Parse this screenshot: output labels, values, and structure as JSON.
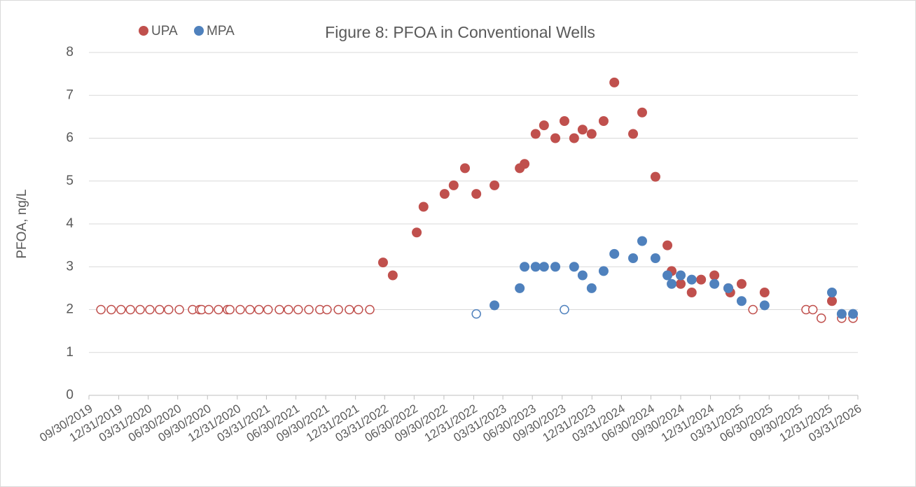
{
  "chart_data": {
    "type": "scatter",
    "title": "Figure 8: PFOA in Conventional Wells",
    "ylabel": "PFOA, ng/L",
    "ylim": [
      0,
      8
    ],
    "yticks": [
      0,
      1,
      2,
      3,
      4,
      5,
      6,
      7,
      8
    ],
    "xlim": [
      "2019-09-30",
      "2026-03-31"
    ],
    "xticks": [
      {
        "value": "2019-09-30",
        "label": "09/30/2019"
      },
      {
        "value": "2019-12-31",
        "label": "12/31/2019"
      },
      {
        "value": "2020-03-31",
        "label": "03/31/2020"
      },
      {
        "value": "2020-06-30",
        "label": "06/30/2020"
      },
      {
        "value": "2020-09-30",
        "label": "09/30/2020"
      },
      {
        "value": "2020-12-31",
        "label": "12/31/2020"
      },
      {
        "value": "2021-03-31",
        "label": "03/31/2021"
      },
      {
        "value": "2021-06-30",
        "label": "06/30/2021"
      },
      {
        "value": "2021-09-30",
        "label": "09/30/2021"
      },
      {
        "value": "2021-12-31",
        "label": "12/31/2021"
      },
      {
        "value": "2022-03-31",
        "label": "03/31/2022"
      },
      {
        "value": "2022-06-30",
        "label": "06/30/2022"
      },
      {
        "value": "2022-09-30",
        "label": "09/30/2022"
      },
      {
        "value": "2022-12-31",
        "label": "12/31/2022"
      },
      {
        "value": "2023-03-31",
        "label": "03/31/2023"
      },
      {
        "value": "2023-06-30",
        "label": "06/30/2023"
      },
      {
        "value": "2023-09-30",
        "label": "09/30/2023"
      },
      {
        "value": "2023-12-31",
        "label": "12/31/2023"
      },
      {
        "value": "2024-03-31",
        "label": "03/31/2024"
      },
      {
        "value": "2024-06-30",
        "label": "06/30/2024"
      },
      {
        "value": "2024-09-30",
        "label": "09/30/2024"
      },
      {
        "value": "2024-12-31",
        "label": "12/31/2024"
      },
      {
        "value": "2025-03-31",
        "label": "03/31/2025"
      },
      {
        "value": "2025-06-30",
        "label": "06/30/2025"
      },
      {
        "value": "2025-09-30",
        "label": "09/30/2025"
      },
      {
        "value": "2025-12-31",
        "label": "12/31/2025"
      },
      {
        "value": "2026-03-31",
        "label": "03/31/2026"
      }
    ],
    "grid": true,
    "legend": "top-left",
    "series": [
      {
        "name": "UPA",
        "color": "#c0504d",
        "x": [
          "2019-11-06",
          "2019-12-08",
          "2020-01-07",
          "2020-02-05",
          "2020-03-06",
          "2020-04-05",
          "2020-05-05",
          "2020-06-02",
          "2020-07-05",
          "2020-08-15",
          "2020-09-06",
          "2020-09-12",
          "2020-10-04",
          "2020-11-03",
          "2020-12-01",
          "2020-12-08",
          "2021-01-09",
          "2021-02-08",
          "2021-03-08",
          "2021-04-05",
          "2021-05-10",
          "2021-06-07",
          "2021-07-07",
          "2021-08-09",
          "2021-09-12",
          "2021-10-04",
          "2021-11-08",
          "2021-12-12",
          "2022-01-09",
          "2022-02-13",
          "2022-03-26",
          "2022-04-25",
          "2022-07-08",
          "2022-07-29",
          "2022-10-02",
          "2022-10-30",
          "2022-12-04",
          "2023-01-08",
          "2023-03-05",
          "2023-05-22",
          "2023-06-06",
          "2023-07-10",
          "2023-08-05",
          "2023-09-09",
          "2023-10-07",
          "2023-11-06",
          "2023-12-02",
          "2023-12-30",
          "2024-02-05",
          "2024-03-09",
          "2024-05-06",
          "2024-06-03",
          "2024-07-14",
          "2024-08-20",
          "2024-09-02",
          "2024-09-30",
          "2024-11-03",
          "2024-12-02",
          "2025-01-12",
          "2025-02-24",
          "2025-03-02",
          "2025-04-06",
          "2025-05-11",
          "2025-06-16",
          "2025-10-22",
          "2025-11-12",
          "2025-12-08",
          "2026-01-10",
          "2026-02-09",
          "2026-03-16"
        ],
        "values": [
          2,
          2,
          2,
          2,
          2,
          2,
          2,
          2,
          2,
          2,
          2,
          2,
          2,
          2,
          2,
          2,
          2,
          2,
          2,
          2,
          2,
          2,
          2,
          2,
          2,
          2,
          2,
          2,
          2,
          2,
          3.1,
          2.8,
          3.8,
          4.4,
          4.7,
          4.9,
          5.3,
          4.7,
          4.9,
          5.3,
          5.4,
          6.1,
          6.3,
          6.0,
          6.4,
          6.0,
          6.2,
          6.1,
          6.4,
          7.3,
          6.1,
          6.6,
          5.1,
          3.5,
          2.9,
          2.6,
          2.4,
          2.7,
          2.8,
          2.5,
          2.4,
          2.6,
          2.0,
          2.4,
          2.0,
          2.0,
          1.8,
          2.2,
          1.8,
          1.8
        ],
        "open": [
          true,
          true,
          true,
          true,
          true,
          true,
          true,
          true,
          true,
          true,
          true,
          true,
          true,
          true,
          true,
          true,
          true,
          true,
          true,
          true,
          true,
          true,
          true,
          true,
          true,
          true,
          true,
          true,
          true,
          true,
          false,
          false,
          false,
          false,
          false,
          false,
          false,
          false,
          false,
          false,
          false,
          false,
          false,
          false,
          false,
          false,
          false,
          false,
          false,
          false,
          false,
          false,
          false,
          false,
          false,
          false,
          false,
          false,
          false,
          false,
          false,
          false,
          true,
          false,
          true,
          true,
          true,
          false,
          true,
          true
        ]
      },
      {
        "name": "MPA",
        "color": "#4f81bd",
        "x": [
          "2023-01-08",
          "2023-03-05",
          "2023-05-22",
          "2023-06-06",
          "2023-07-10",
          "2023-08-05",
          "2023-09-09",
          "2023-10-07",
          "2023-11-06",
          "2023-12-02",
          "2023-12-30",
          "2024-02-05",
          "2024-03-09",
          "2024-05-06",
          "2024-06-03",
          "2024-07-14",
          "2024-08-20",
          "2024-09-02",
          "2024-09-30",
          "2024-11-03",
          "2025-01-12",
          "2025-02-24",
          "2025-04-06",
          "2025-06-16",
          "2026-01-10",
          "2026-02-09",
          "2026-03-16"
        ],
        "values": [
          1.9,
          2.1,
          2.5,
          3.0,
          3.0,
          3.0,
          3.0,
          2.0,
          3.0,
          2.8,
          2.5,
          2.9,
          3.3,
          3.2,
          3.6,
          3.2,
          2.8,
          2.6,
          2.8,
          2.7,
          2.6,
          2.5,
          2.2,
          2.1,
          2.4,
          1.9,
          1.9
        ],
        "open": [
          true,
          false,
          false,
          false,
          false,
          false,
          false,
          true,
          false,
          false,
          false,
          false,
          false,
          false,
          false,
          false,
          false,
          false,
          false,
          false,
          false,
          false,
          false,
          false,
          false,
          false,
          false
        ]
      }
    ]
  }
}
